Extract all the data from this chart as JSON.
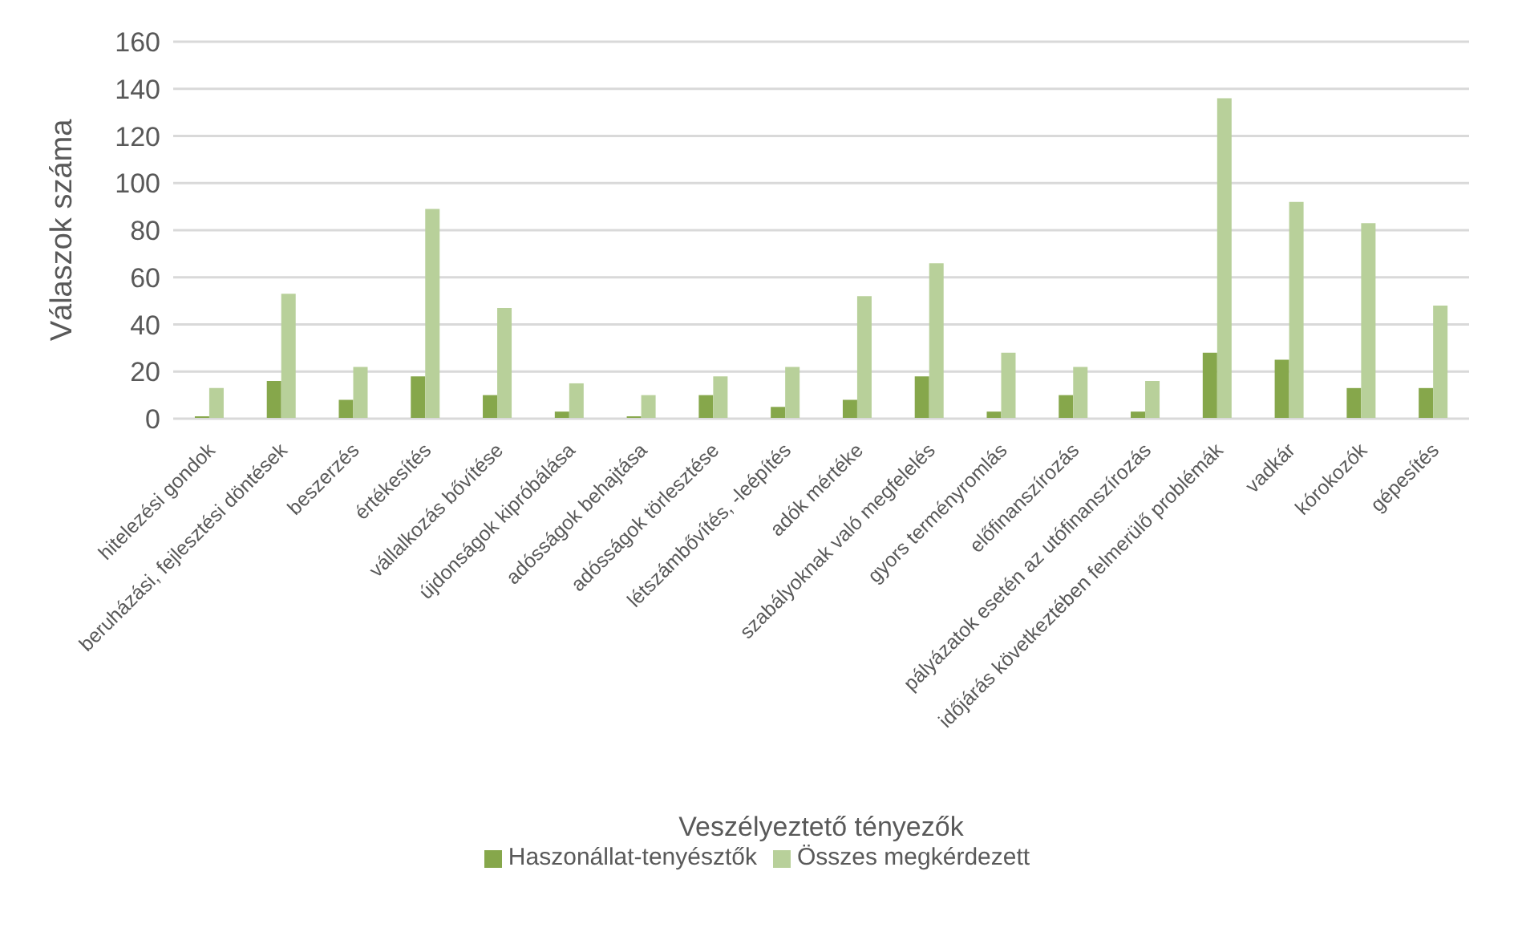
{
  "chart_data": {
    "type": "bar",
    "xlabel": "Veszélyeztető tényezők",
    "ylabel": "Válaszok száma",
    "categories": [
      "hitelezési gondok",
      "beruházási, fejlesztési döntések",
      "beszerzés",
      "értékesítés",
      "vállalkozás bővítése",
      "újdonságok kipróbálása",
      "adósságok behajtása",
      "adósságok törlesztése",
      "létszámbővítés, -leépítés",
      "adók mértéke",
      "szabályoknak való megfelelés",
      "gyors terményromlás",
      "előfinanszírozás",
      "pályázatok esetén az utófinanszírozás",
      "időjárás következtében felmerülő problémák",
      "vadkár",
      "kórokozók",
      "gépesítés"
    ],
    "series": [
      {
        "name": "Haszonállat-tenyésztők",
        "color": "#86a74b",
        "values": [
          1,
          16,
          8,
          18,
          10,
          3,
          1,
          10,
          5,
          8,
          18,
          3,
          10,
          3,
          28,
          25,
          13,
          13
        ]
      },
      {
        "name": "Összes megkérdezett",
        "color": "#b8d09a",
        "values": [
          13,
          53,
          22,
          89,
          47,
          15,
          10,
          18,
          22,
          52,
          66,
          28,
          22,
          16,
          136,
          92,
          83,
          48
        ]
      }
    ],
    "ylim": [
      0,
      160
    ],
    "yticks": [
      0,
      20,
      40,
      60,
      80,
      100,
      120,
      140,
      160
    ],
    "grid": "y",
    "legend": "bottom"
  }
}
